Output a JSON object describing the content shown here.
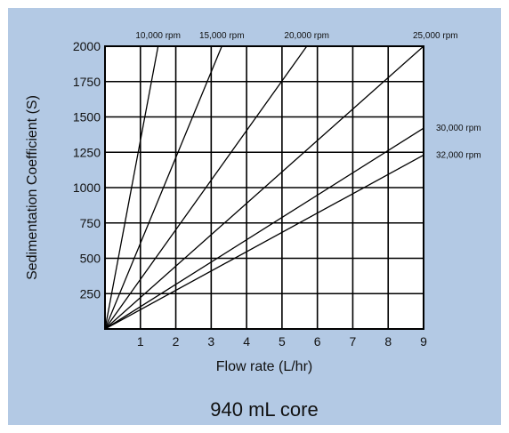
{
  "colors": {
    "panel": "#b3c9e4",
    "plot_bg": "#ffffff",
    "ink": "#000000"
  },
  "caption": "940 mL core",
  "chart_data": {
    "type": "line",
    "title": "",
    "xlabel": "Flow rate (L/hr)",
    "ylabel": "Sedimentation Coefficient (S)",
    "xlim": [
      0,
      9
    ],
    "ylim": [
      0,
      2000
    ],
    "x_ticks": [
      1,
      2,
      3,
      4,
      5,
      6,
      7,
      8,
      9
    ],
    "y_ticks": [
      250,
      500,
      750,
      1000,
      1250,
      1500,
      1750,
      2000
    ],
    "grid": true,
    "series": [
      {
        "name": "10,000 rpm",
        "x": [
          0,
          1.5
        ],
        "y": [
          0,
          2000
        ]
      },
      {
        "name": "15,000 rpm",
        "x": [
          0,
          3.3
        ],
        "y": [
          0,
          2000
        ]
      },
      {
        "name": "20,000 rpm",
        "x": [
          0,
          5.7
        ],
        "y": [
          0,
          2000
        ]
      },
      {
        "name": "25,000 rpm",
        "x": [
          0,
          9
        ],
        "y": [
          0,
          2000
        ]
      },
      {
        "name": "30,000 rpm",
        "x": [
          0,
          9
        ],
        "y": [
          0,
          1420
        ]
      },
      {
        "name": "32,000 rpm",
        "x": [
          0,
          9
        ],
        "y": [
          0,
          1230
        ]
      }
    ]
  }
}
